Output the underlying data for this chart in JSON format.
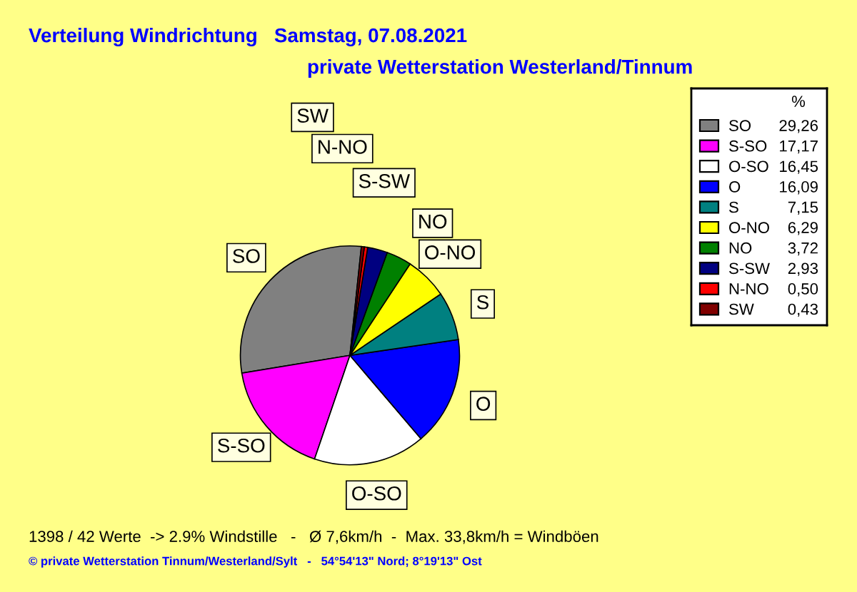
{
  "chart_data": {
    "type": "pie",
    "title": "Verteilung Windrichtung   Samstag, 07.08.2021",
    "subtitle": "private Wetterstation Westerland/Tinnum",
    "legend_title": "%",
    "legend": "right",
    "categories": [
      "SO",
      "S-SO",
      "O-SO",
      "O",
      "S",
      "O-NO",
      "NO",
      "S-SW",
      "N-NO",
      "SW"
    ],
    "values": [
      29.26,
      17.17,
      16.45,
      16.09,
      7.15,
      6.29,
      3.72,
      2.93,
      0.5,
      0.43
    ],
    "value_labels": [
      "29,26",
      "17,17",
      "16,45",
      "16,09",
      "7,15",
      "6,29",
      "3,72",
      "2,93",
      "0,50",
      "0,43"
    ],
    "colors": [
      "#808080",
      "#ff00ff",
      "#ffffff",
      "#0000ff",
      "#008080",
      "#ffff00",
      "#008000",
      "#000080",
      "#ff0000",
      "#800000"
    ],
    "annotations": [
      "1398 / 42 Werte  -> 2.9% Windstille   -   Ø 7,6km/h  -  Max. 33,8km/h = Windböen",
      "© private Wetterstation Tinnum/Westerland/Sylt   -   54°54'13\" Nord; 8°19'13\" Ost"
    ]
  }
}
